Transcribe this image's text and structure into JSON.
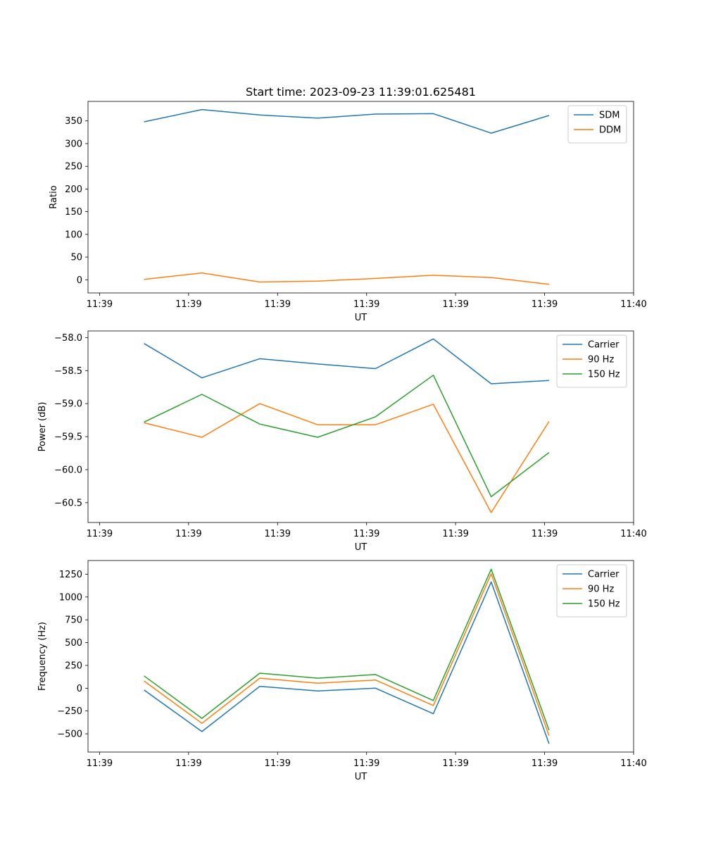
{
  "chart_data": [
    {
      "type": "line",
      "title": "Start time: 2023-09-23 11:39:01.625481",
      "xlabel": "UT",
      "ylabel": "Ratio",
      "x": [
        0.5,
        1.15,
        1.8,
        2.45,
        3.1,
        3.75,
        4.4,
        5.05
      ],
      "xticks": [
        0,
        1,
        2,
        3,
        4,
        5,
        6
      ],
      "xtick_labels": [
        "11:39",
        "11:39",
        "11:39",
        "11:39",
        "11:39",
        "11:39",
        "11:40"
      ],
      "xlim": [
        -0.13,
        6.0
      ],
      "ylim": [
        -29,
        393
      ],
      "yticks": [
        0,
        50,
        100,
        150,
        200,
        250,
        300,
        350
      ],
      "ytick_labels": [
        "0",
        "50",
        "100",
        "150",
        "200",
        "250",
        "300",
        "350"
      ],
      "legend": "top-right",
      "series": [
        {
          "name": "SDM",
          "color": "#1f77b4",
          "values": [
            348,
            375,
            363,
            356,
            365,
            366,
            323,
            362
          ]
        },
        {
          "name": "DDM",
          "color": "#ff7f0e",
          "values": [
            1,
            15,
            -5,
            -3,
            3,
            10,
            5,
            -10
          ]
        }
      ]
    },
    {
      "type": "line",
      "title": "",
      "xlabel": "UT",
      "ylabel": "Power (dB)",
      "x": [
        0.5,
        1.15,
        1.8,
        2.45,
        3.1,
        3.75,
        4.4,
        5.05
      ],
      "xticks": [
        0,
        1,
        2,
        3,
        4,
        5,
        6
      ],
      "xtick_labels": [
        "11:39",
        "11:39",
        "11:39",
        "11:39",
        "11:39",
        "11:39",
        "11:40"
      ],
      "xlim": [
        -0.13,
        6.0
      ],
      "ylim": [
        -60.8,
        -57.9
      ],
      "yticks": [
        -60.5,
        -60.0,
        -59.5,
        -59.0,
        -58.5,
        -58.0
      ],
      "ytick_labels": [
        "−60.5",
        "−60.0",
        "−59.5",
        "−59.0",
        "−58.5",
        "−58.0"
      ],
      "legend": "top-right",
      "series": [
        {
          "name": "Carrier",
          "color": "#1f77b4",
          "values": [
            -58.09,
            -58.61,
            -58.32,
            -58.4,
            -58.47,
            -58.02,
            -58.7,
            -58.65
          ]
        },
        {
          "name": "90 Hz",
          "color": "#ff7f0e",
          "values": [
            -59.29,
            -59.51,
            -59.0,
            -59.32,
            -59.32,
            -59.01,
            -60.65,
            -59.27
          ]
        },
        {
          "name": "150 Hz",
          "color": "#2ca02c",
          "values": [
            -59.28,
            -58.86,
            -59.31,
            -59.51,
            -59.2,
            -58.57,
            -60.41,
            -59.74
          ]
        }
      ]
    },
    {
      "type": "line",
      "title": "",
      "xlabel": "UT",
      "ylabel": "Frequency (Hz)",
      "x": [
        0.5,
        1.15,
        1.8,
        2.45,
        3.1,
        3.75,
        4.4,
        5.05
      ],
      "xticks": [
        0,
        1,
        2,
        3,
        4,
        5,
        6
      ],
      "xtick_labels": [
        "11:39",
        "11:39",
        "11:39",
        "11:39",
        "11:39",
        "11:39",
        "11:40"
      ],
      "xlim": [
        -0.13,
        6.0
      ],
      "ylim": [
        -700,
        1400
      ],
      "yticks": [
        -500,
        -250,
        0,
        250,
        500,
        750,
        1000,
        1250
      ],
      "ytick_labels": [
        "−500",
        "−250",
        "0",
        "250",
        "500",
        "750",
        "1000",
        "1250"
      ],
      "legend": "top-right",
      "series": [
        {
          "name": "Carrier",
          "color": "#1f77b4",
          "values": [
            -20,
            -475,
            20,
            -30,
            0,
            -280,
            1165,
            -610
          ]
        },
        {
          "name": "90 Hz",
          "color": "#ff7f0e",
          "values": [
            80,
            -385,
            110,
            55,
            90,
            -190,
            1255,
            -520
          ]
        },
        {
          "name": "150 Hz",
          "color": "#2ca02c",
          "values": [
            135,
            -330,
            165,
            110,
            150,
            -135,
            1305,
            -460
          ]
        }
      ]
    }
  ]
}
